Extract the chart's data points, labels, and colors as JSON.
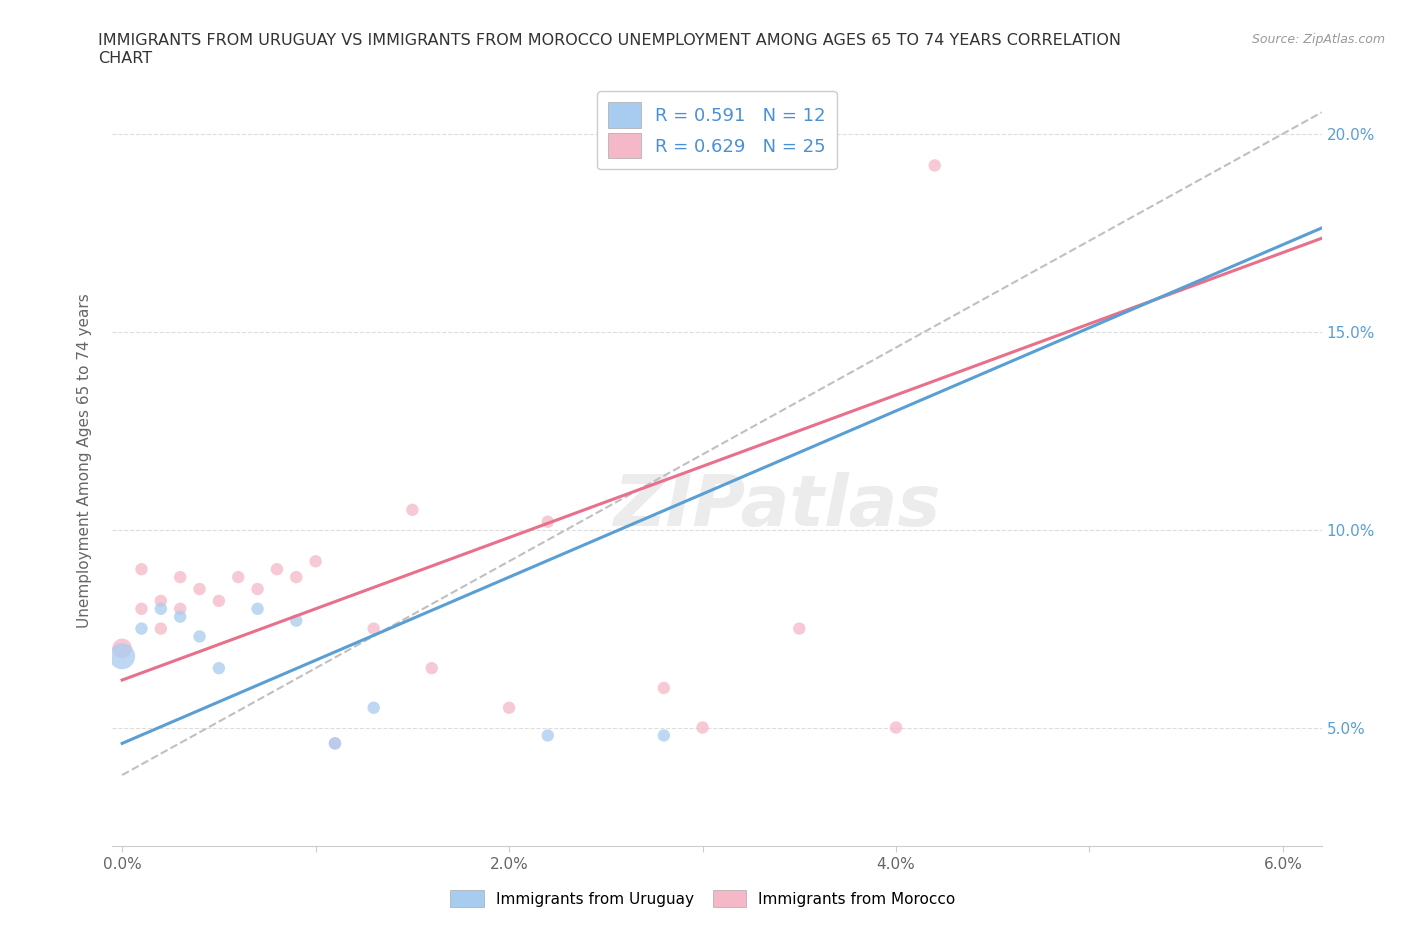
{
  "title": "IMMIGRANTS FROM URUGUAY VS IMMIGRANTS FROM MOROCCO UNEMPLOYMENT AMONG AGES 65 TO 74 YEARS CORRELATION\nCHART",
  "source_text": "Source: ZipAtlas.com",
  "ylabel": "Unemployment Among Ages 65 to 74 years",
  "xlim": [
    -0.0005,
    0.062
  ],
  "ylim": [
    0.02,
    0.215
  ],
  "xticks": [
    0.0,
    0.01,
    0.02,
    0.03,
    0.04,
    0.05,
    0.06
  ],
  "xticklabels": [
    "0.0%",
    "",
    "2.0%",
    "",
    "4.0%",
    "",
    "6.0%"
  ],
  "yticks": [
    0.05,
    0.1,
    0.15,
    0.2
  ],
  "yticklabels": [
    "5.0%",
    "10.0%",
    "15.0%",
    "20.0%"
  ],
  "uruguay_color": "#a8ccf0",
  "morocco_color": "#f5b8c8",
  "uruguay_line_color": "#5a9fd4",
  "morocco_line_color": "#e8708a",
  "dash_line_color": "#c0c0c0",
  "uruguay_R": 0.591,
  "uruguay_N": 12,
  "morocco_R": 0.629,
  "morocco_N": 25,
  "uruguay_x": [
    0.0,
    0.001,
    0.002,
    0.003,
    0.004,
    0.005,
    0.007,
    0.009,
    0.011,
    0.013,
    0.022,
    0.028
  ],
  "uruguay_y": [
    0.068,
    0.075,
    0.08,
    0.078,
    0.073,
    0.065,
    0.08,
    0.077,
    0.046,
    0.055,
    0.048,
    0.048
  ],
  "uruguay_sizes": [
    350,
    80,
    80,
    80,
    80,
    80,
    80,
    80,
    80,
    80,
    80,
    80
  ],
  "morocco_x": [
    0.0,
    0.001,
    0.001,
    0.002,
    0.002,
    0.003,
    0.003,
    0.004,
    0.005,
    0.006,
    0.007,
    0.008,
    0.009,
    0.01,
    0.011,
    0.013,
    0.015,
    0.016,
    0.02,
    0.022,
    0.028,
    0.03,
    0.035,
    0.04,
    0.042
  ],
  "morocco_y": [
    0.07,
    0.08,
    0.09,
    0.075,
    0.082,
    0.08,
    0.088,
    0.085,
    0.082,
    0.088,
    0.085,
    0.09,
    0.088,
    0.092,
    0.046,
    0.075,
    0.105,
    0.065,
    0.055,
    0.102,
    0.06,
    0.05,
    0.075,
    0.05,
    0.192
  ],
  "morocco_sizes": [
    200,
    80,
    80,
    80,
    80,
    80,
    80,
    80,
    80,
    80,
    80,
    80,
    80,
    80,
    80,
    80,
    80,
    80,
    80,
    80,
    80,
    80,
    80,
    80,
    80
  ],
  "background_color": "#ffffff",
  "grid_color": "#e0e0e0",
  "watermark_text": "ZIPatlas"
}
